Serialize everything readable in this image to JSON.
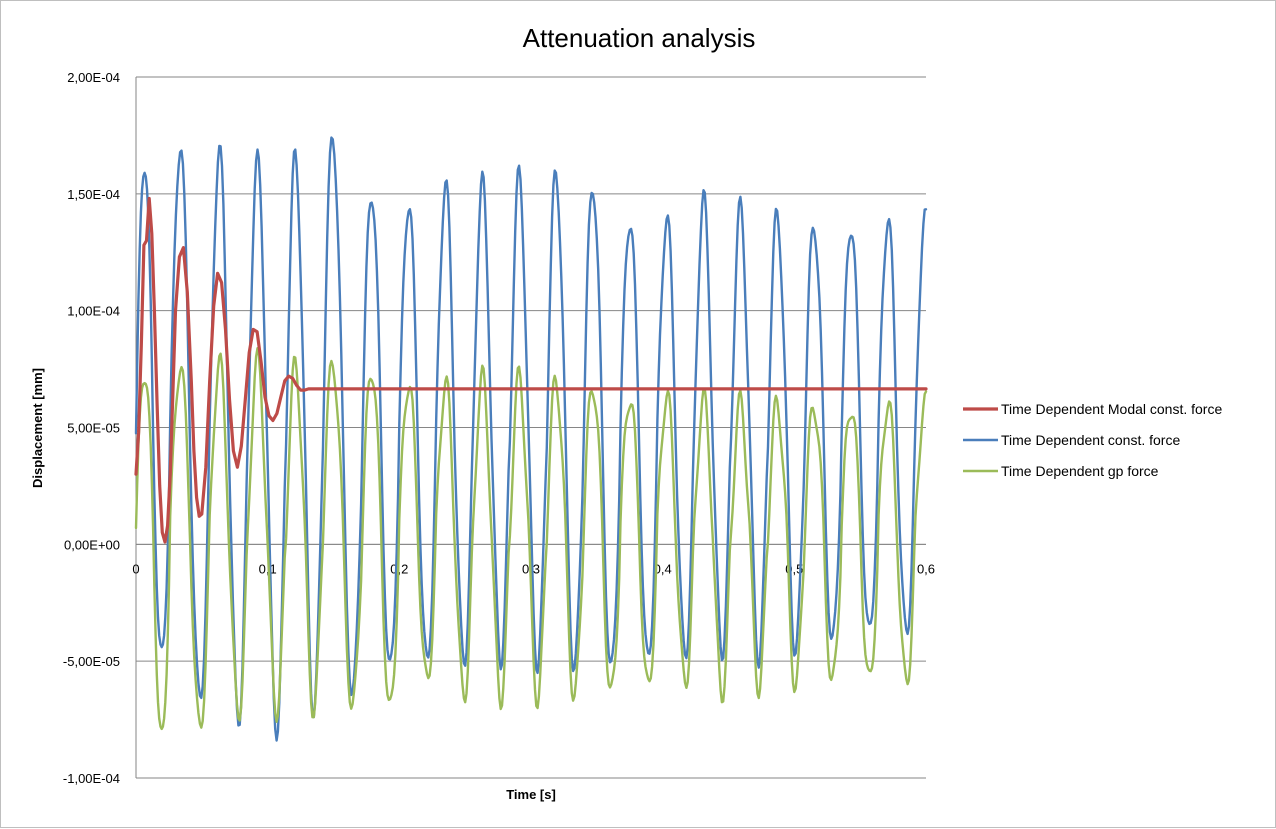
{
  "chart_data": {
    "type": "line",
    "title": "Attenuation analysis",
    "xlabel": "Time [s]",
    "ylabel": "Displacement [mm]",
    "xlim": [
      0,
      0.6
    ],
    "ylim": [
      -0.0001,
      0.0002
    ],
    "x_ticks": [
      0,
      0.1,
      0.2,
      0.3,
      0.4,
      0.5,
      0.6
    ],
    "x_tick_labels": [
      "0",
      "0,1",
      "0,2",
      "0,3",
      "0,4",
      "0,5",
      "0,6"
    ],
    "y_ticks": [
      -0.0001,
      -5e-05,
      0,
      5e-05,
      0.0001,
      0.00015,
      0.0002
    ],
    "y_tick_labels": [
      "-1,00E-04",
      "-5,00E-05",
      "0,00E+00",
      "5,00E-05",
      "1,00E-04",
      "1,50E-04",
      "2,00E-04"
    ],
    "grid": "horizontal",
    "legend": "right",
    "series": [
      {
        "name": "Time Dependent Modal const. force",
        "color": "#be4b48",
        "x": [
          0,
          0.002,
          0.004,
          0.006,
          0.008,
          0.01,
          0.012,
          0.014,
          0.016,
          0.018,
          0.02,
          0.022,
          0.024,
          0.026,
          0.028,
          0.03,
          0.033,
          0.036,
          0.039,
          0.042,
          0.044,
          0.046,
          0.048,
          0.05,
          0.053,
          0.056,
          0.059,
          0.062,
          0.065,
          0.068,
          0.071,
          0.074,
          0.077,
          0.08,
          0.083,
          0.086,
          0.089,
          0.092,
          0.095,
          0.098,
          0.101,
          0.104,
          0.107,
          0.11,
          0.113,
          0.116,
          0.119,
          0.122,
          0.125,
          0.128,
          0.131,
          0.134,
          0.137,
          0.14,
          0.145,
          0.15,
          0.16,
          0.2,
          0.3,
          0.4,
          0.5,
          0.6
        ],
        "values": [
          3e-05,
          4.8e-05,
          8.5e-05,
          0.000128,
          0.00013,
          0.000148,
          0.000133,
          0.0001,
          6e-05,
          2.5e-05,
          5e-06,
          1e-06,
          8e-06,
          3e-05,
          6.5e-05,
          0.0001,
          0.000123,
          0.000127,
          0.000108,
          7e-05,
          4e-05,
          2e-05,
          1.2e-05,
          1.3e-05,
          3.3e-05,
          7e-05,
          0.000102,
          0.000116,
          0.000112,
          9.2e-05,
          6.2e-05,
          4e-05,
          3.3e-05,
          4.2e-05,
          6.2e-05,
          8.2e-05,
          9.2e-05,
          9.1e-05,
          7.8e-05,
          6.3e-05,
          5.5e-05,
          5.3e-05,
          5.6e-05,
          6.3e-05,
          7e-05,
          7.2e-05,
          7.1e-05,
          6.8e-05,
          6.6e-05,
          6.6e-05,
          6.65e-05,
          6.65e-05,
          6.65e-05,
          6.65e-05,
          6.65e-05,
          6.65e-05,
          6.65e-05,
          6.65e-05,
          6.65e-05,
          6.65e-05,
          6.65e-05,
          6.65e-05
        ]
      },
      {
        "name": "Time Dependent const. force",
        "color": "#4a7ebb",
        "base": 4.75e-05,
        "cycles": [
          {
            "t": 0.0,
            "p": 0.000165,
            "v": -5e-05
          },
          {
            "t": 0.026,
            "p": 0.000171,
            "v": -6.8e-05
          },
          {
            "t": 0.056,
            "p": 0.000168,
            "v": -7.5e-05
          },
          {
            "t": 0.085,
            "p": 0.000163,
            "v": -7.8e-05
          },
          {
            "t": 0.114,
            "p": 0.000165,
            "v": -7e-05
          },
          {
            "t": 0.142,
            "p": 0.000175,
            "v": -6.5e-05
          },
          {
            "t": 0.172,
            "p": 0.000152,
            "v": -5.5e-05
          },
          {
            "t": 0.2,
            "p": 0.000147,
            "v": -5.2e-05
          },
          {
            "t": 0.228,
            "p": 0.000154,
            "v": -5e-05
          },
          {
            "t": 0.256,
            "p": 0.000154,
            "v": -4.8e-05
          },
          {
            "t": 0.284,
            "p": 0.000157,
            "v": -5e-05
          },
          {
            "t": 0.312,
            "p": 0.000159,
            "v": -5.3e-05
          },
          {
            "t": 0.34,
            "p": 0.000155,
            "v": -5.5e-05
          },
          {
            "t": 0.368,
            "p": 0.00014,
            "v": -5.2e-05
          },
          {
            "t": 0.396,
            "p": 0.00014,
            "v": -4.8e-05
          },
          {
            "t": 0.424,
            "p": 0.000147,
            "v": -4.5e-05
          },
          {
            "t": 0.452,
            "p": 0.000143,
            "v": -4.7e-05
          },
          {
            "t": 0.48,
            "p": 0.000141,
            "v": -4.5e-05
          },
          {
            "t": 0.508,
            "p": 0.000138,
            "v": -4.3e-05
          },
          {
            "t": 0.536,
            "p": 0.000138,
            "v": -4e-05
          },
          {
            "t": 0.564,
            "p": 0.00014,
            "v": -3.9e-05
          },
          {
            "t": 0.592,
            "p": 0.00014,
            "v": -4e-05
          }
        ]
      },
      {
        "name": "Time Dependent gp force",
        "color": "#9bbb59",
        "base": 7e-06,
        "cycles": [
          {
            "t": 0.0,
            "p": 7.5e-05,
            "v": -8.5e-05
          },
          {
            "t": 0.026,
            "p": 7.7e-05,
            "v": -8e-05
          },
          {
            "t": 0.056,
            "p": 7.8e-05,
            "v": -7.2e-05
          },
          {
            "t": 0.085,
            "p": 7.8e-05,
            "v": -7e-05
          },
          {
            "t": 0.114,
            "p": 7.6e-05,
            "v": -7e-05
          },
          {
            "t": 0.142,
            "p": 7.8e-05,
            "v": -7e-05
          },
          {
            "t": 0.172,
            "p": 7.6e-05,
            "v": -7.2e-05
          },
          {
            "t": 0.2,
            "p": 7e-05,
            "v": -6e-05
          },
          {
            "t": 0.228,
            "p": 6.9e-05,
            "v": -6.5e-05
          },
          {
            "t": 0.256,
            "p": 7.1e-05,
            "v": -6.5e-05
          },
          {
            "t": 0.284,
            "p": 7.1e-05,
            "v": -6.5e-05
          },
          {
            "t": 0.312,
            "p": 7e-05,
            "v": -6.5e-05
          },
          {
            "t": 0.34,
            "p": 6.9e-05,
            "v": -6.5e-05
          },
          {
            "t": 0.368,
            "p": 6.4e-05,
            "v": -6.3e-05
          },
          {
            "t": 0.396,
            "p": 6.4e-05,
            "v": -6e-05
          },
          {
            "t": 0.424,
            "p": 6.2e-05,
            "v": -6.3e-05
          },
          {
            "t": 0.452,
            "p": 6e-05,
            "v": -6e-05
          },
          {
            "t": 0.48,
            "p": 6e-05,
            "v": -6e-05
          },
          {
            "t": 0.508,
            "p": 6e-05,
            "v": -6e-05
          },
          {
            "t": 0.536,
            "p": 6e-05,
            "v": -6e-05
          },
          {
            "t": 0.564,
            "p": 6.1e-05,
            "v": -6e-05
          },
          {
            "t": 0.592,
            "p": 6.1e-05,
            "v": -6e-05
          }
        ]
      }
    ]
  }
}
